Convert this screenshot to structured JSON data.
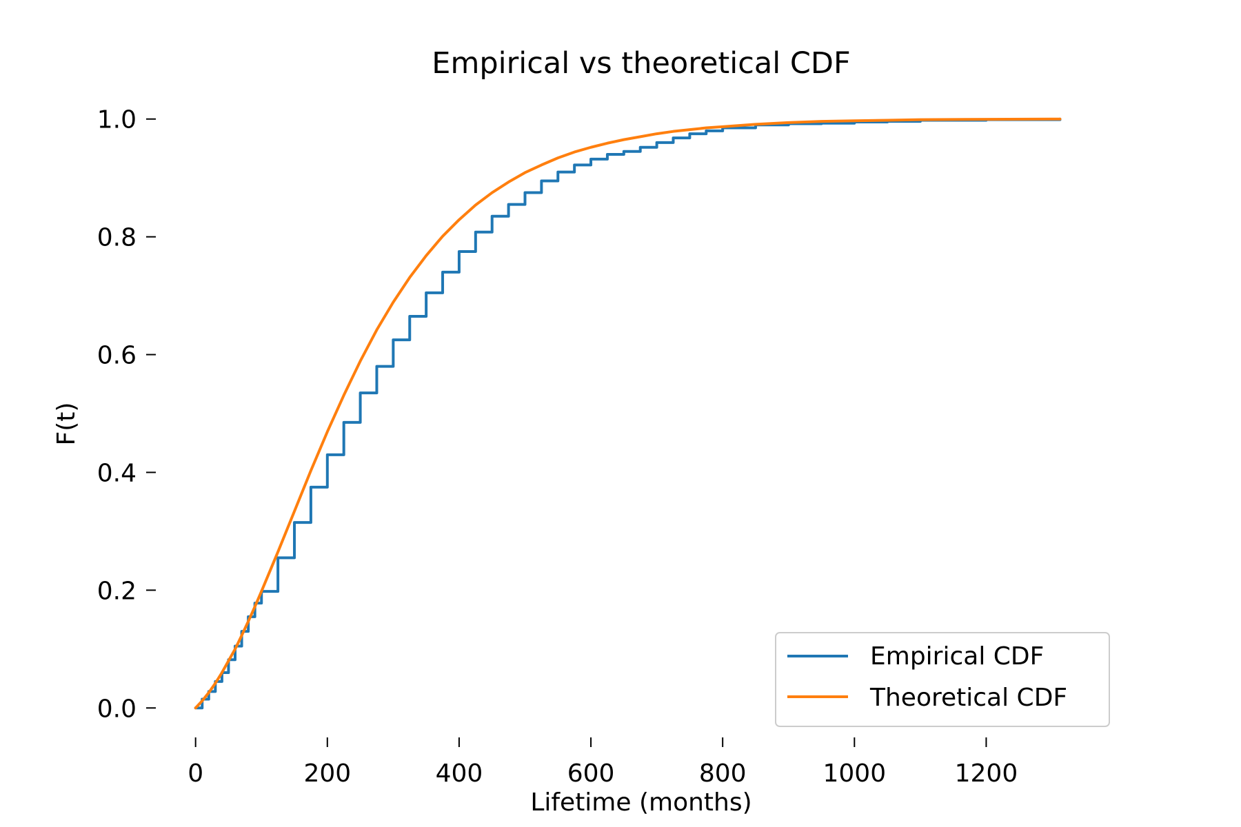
{
  "chart_data": {
    "type": "line",
    "title": "Empirical vs theoretical CDF",
    "xlabel": "Lifetime (months)",
    "ylabel": "F(t)",
    "xlim": [
      -75,
      1390
    ],
    "ylim": [
      -0.05,
      1.05
    ],
    "xticks": [
      0,
      200,
      400,
      600,
      800,
      1000,
      1200
    ],
    "xtick_labels": [
      "0",
      "200",
      "400",
      "600",
      "800",
      "1000",
      "1200"
    ],
    "yticks": [
      0.0,
      0.2,
      0.4,
      0.6,
      0.8,
      1.0
    ],
    "ytick_labels": [
      "0.0",
      "0.2",
      "0.4",
      "0.6",
      "0.8",
      "1.0"
    ],
    "grid": false,
    "legend_position": "bottom-right",
    "series": [
      {
        "name": "Empirical CDF",
        "color": "#1f77b4",
        "step": true,
        "x": [
          0,
          10,
          20,
          30,
          40,
          50,
          60,
          70,
          80,
          90,
          100,
          125,
          150,
          175,
          200,
          225,
          250,
          275,
          300,
          325,
          350,
          375,
          400,
          425,
          450,
          475,
          500,
          525,
          550,
          575,
          600,
          625,
          650,
          675,
          700,
          725,
          750,
          775,
          800,
          850,
          900,
          950,
          1000,
          1050,
          1100,
          1200,
          1312
        ],
        "y": [
          0.0,
          0.015,
          0.028,
          0.045,
          0.06,
          0.082,
          0.105,
          0.13,
          0.155,
          0.178,
          0.198,
          0.255,
          0.315,
          0.375,
          0.43,
          0.485,
          0.535,
          0.58,
          0.625,
          0.665,
          0.705,
          0.74,
          0.775,
          0.808,
          0.835,
          0.855,
          0.875,
          0.895,
          0.91,
          0.922,
          0.932,
          0.94,
          0.945,
          0.952,
          0.96,
          0.968,
          0.975,
          0.98,
          0.985,
          0.99,
          0.992,
          0.993,
          0.995,
          0.996,
          0.998,
          0.999,
          1.0
        ]
      },
      {
        "name": "Theoretical CDF",
        "color": "#ff7f0e",
        "step": false,
        "x": [
          0,
          10,
          20,
          30,
          40,
          50,
          60,
          70,
          80,
          90,
          100,
          125,
          150,
          175,
          200,
          225,
          250,
          275,
          300,
          325,
          350,
          375,
          400,
          425,
          450,
          475,
          500,
          525,
          550,
          575,
          600,
          625,
          650,
          675,
          700,
          725,
          750,
          775,
          800,
          850,
          900,
          950,
          1000,
          1050,
          1100,
          1200,
          1312
        ],
        "y": [
          0.0,
          0.012,
          0.026,
          0.042,
          0.06,
          0.08,
          0.1,
          0.123,
          0.147,
          0.172,
          0.198,
          0.265,
          0.334,
          0.403,
          0.469,
          0.531,
          0.589,
          0.642,
          0.689,
          0.731,
          0.768,
          0.801,
          0.829,
          0.854,
          0.875,
          0.893,
          0.909,
          0.922,
          0.934,
          0.944,
          0.952,
          0.959,
          0.965,
          0.97,
          0.975,
          0.979,
          0.982,
          0.985,
          0.987,
          0.991,
          0.994,
          0.996,
          0.997,
          0.998,
          0.999,
          0.9995,
          1.0
        ]
      }
    ]
  }
}
